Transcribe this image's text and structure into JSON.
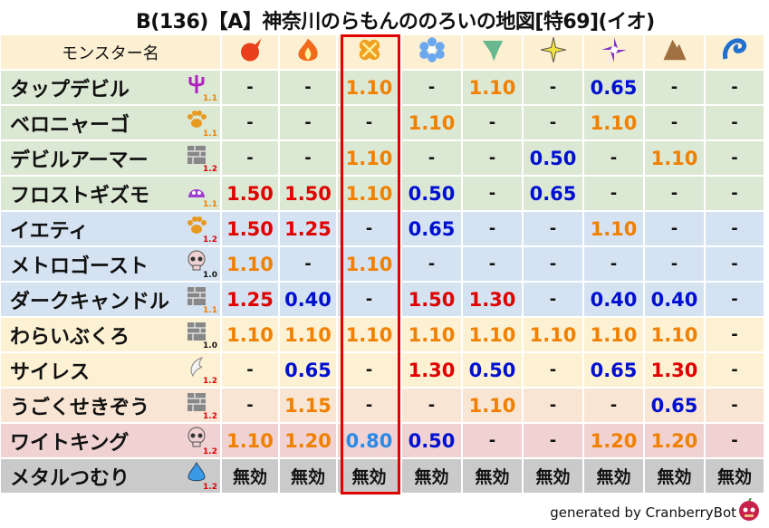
{
  "title": "B(136)【A】神奈川のらもんののろいの地図[特69](イオ)",
  "header": {
    "name_label": "モンスター名",
    "elements": [
      {
        "icon": "fire-ball-icon",
        "color": "#e8401a"
      },
      {
        "icon": "flame-icon",
        "color": "#f06a1a"
      },
      {
        "icon": "explosion-icon",
        "color": "#f0a020"
      },
      {
        "icon": "ice-flower-icon",
        "color": "#6aa8f0"
      },
      {
        "icon": "tornado-icon",
        "color": "#6ab890"
      },
      {
        "icon": "lightning-star-icon",
        "color": "#f0e040"
      },
      {
        "icon": "dark-swirl-icon",
        "color": "#8030c0"
      },
      {
        "icon": "rock-icon",
        "color": "#a07040"
      },
      {
        "icon": "water-wave-icon",
        "color": "#2070d0"
      }
    ]
  },
  "rows": [
    {
      "name": "タップデビル",
      "icon": "trident-icon",
      "level": "1.1",
      "level_color": "#f08000",
      "bg": "#dbe8d4",
      "values": [
        "-",
        "-",
        "1.10",
        "-",
        "1.10",
        "-",
        "0.65",
        "-",
        "-"
      ]
    },
    {
      "name": "ベロニャーゴ",
      "icon": "paw-icon",
      "level": "1.1",
      "level_color": "#f08000",
      "bg": "#dbe8d4",
      "values": [
        "-",
        "-",
        "-",
        "1.10",
        "-",
        "-",
        "1.10",
        "-",
        "-"
      ]
    },
    {
      "name": "デビルアーマー",
      "icon": "brick-icon",
      "level": "1.2",
      "level_color": "#e00000",
      "bg": "#dbe8d4",
      "values": [
        "-",
        "-",
        "1.10",
        "-",
        "-",
        "0.50",
        "-",
        "1.10",
        "-"
      ]
    },
    {
      "name": "フロストギズモ",
      "icon": "slime-icon",
      "level": "1.1",
      "level_color": "#f08000",
      "bg": "#dbe8d4",
      "values": [
        "1.50",
        "1.50",
        "1.10",
        "0.50",
        "-",
        "0.65",
        "-",
        "-",
        "-"
      ]
    },
    {
      "name": "イエティ",
      "icon": "paw-icon",
      "level": "1.2",
      "level_color": "#e00000",
      "bg": "#d5e2f1",
      "values": [
        "1.50",
        "1.25",
        "-",
        "0.65",
        "-",
        "-",
        "1.10",
        "-",
        "-"
      ]
    },
    {
      "name": "メトロゴースト",
      "icon": "skull-icon",
      "level": "1.0",
      "level_color": "#111111",
      "bg": "#d5e2f1",
      "values": [
        "1.10",
        "-",
        "1.10",
        "-",
        "-",
        "-",
        "-",
        "-",
        "-"
      ]
    },
    {
      "name": "ダークキャンドル",
      "icon": "brick-icon",
      "level": "1.1",
      "level_color": "#f08000",
      "bg": "#d5e2f1",
      "values": [
        "1.25",
        "0.40",
        "-",
        "1.50",
        "1.30",
        "-",
        "0.40",
        "0.40",
        "-"
      ]
    },
    {
      "name": "わらいぶくろ",
      "icon": "brick-icon",
      "level": "1.0",
      "level_color": "#111111",
      "bg": "#fdf1d3",
      "values": [
        "1.10",
        "1.10",
        "1.10",
        "1.10",
        "1.10",
        "1.10",
        "1.10",
        "1.10",
        "-"
      ]
    },
    {
      "name": "サイレス",
      "icon": "wing-icon",
      "level": "1.2",
      "level_color": "#e00000",
      "bg": "#fdf1d3",
      "values": [
        "-",
        "0.65",
        "-",
        "1.30",
        "0.50",
        "-",
        "0.65",
        "1.30",
        "-"
      ]
    },
    {
      "name": "うごくせきぞう",
      "icon": "brick-icon",
      "level": "1.2",
      "level_color": "#e00000",
      "bg": "#f9e5d3",
      "values": [
        "-",
        "1.15",
        "-",
        "-",
        "1.10",
        "-",
        "-",
        "0.65",
        "-"
      ]
    },
    {
      "name": "ワイトキング",
      "icon": "skull-icon",
      "level": "1.2",
      "level_color": "#e00000",
      "bg": "#f0d2d2",
      "values": [
        "1.10",
        "1.20",
        "0.80",
        "0.50",
        "-",
        "-",
        "1.20",
        "1.20",
        "-"
      ]
    },
    {
      "name": "メタルつむり",
      "icon": "metal-slime-icon",
      "level": "1.2",
      "level_color": "#e00000",
      "bg": "#cacaca",
      "values": [
        "無効",
        "無効",
        "無効",
        "無効",
        "無効",
        "無効",
        "無効",
        "無効",
        "無効"
      ]
    }
  ],
  "highlight_column": 2,
  "highlight_color": "#e00000",
  "footer": "generated by CranberryBot"
}
